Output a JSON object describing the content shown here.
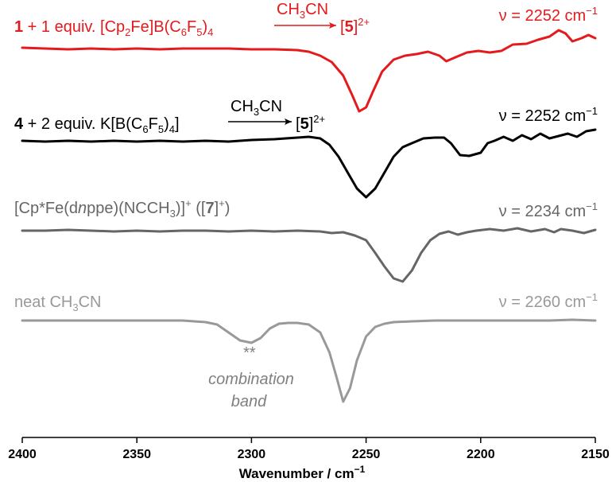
{
  "chart_data": {
    "type": "line",
    "xlabel": "Wavenumber / cm",
    "xlabel_sup": "−1",
    "x_reversed": true,
    "xlim": [
      2400,
      2150
    ],
    "xticks": [
      2400,
      2350,
      2300,
      2250,
      2200,
      2150
    ],
    "xtick_labels": [
      "2400",
      "2350",
      "2300",
      "2250",
      "2200",
      "2150"
    ],
    "y_axis_shown": false,
    "y_units": "offset absorbance (arbitrary, stacked traces)",
    "series": [
      {
        "id": "s1",
        "color": "#e41a1c",
        "label": {
          "bold_num": "1",
          "text1": " + 1 equiv. [Cp",
          "sub1": "2",
          "text2": "Fe]B(C",
          "sub2": "6",
          "text3": "F",
          "sub3": "5",
          "text4": ")",
          "sub4": "4",
          "arrow_above": "CH",
          "arrow_above_sub": "3",
          "arrow_above_end": "CN",
          "product_open": "[",
          "product_bold": "5",
          "product_close": "]",
          "product_sup": "2+"
        },
        "nu_label": "ν = 2252 cm",
        "nu_sup": "−1",
        "peak": 2252,
        "points": [
          [
            2400,
            0.0
          ],
          [
            2390,
            0.01
          ],
          [
            2380,
            0.02
          ],
          [
            2370,
            0.01
          ],
          [
            2360,
            0.02
          ],
          [
            2350,
            0.01
          ],
          [
            2340,
            0.02
          ],
          [
            2330,
            0.01
          ],
          [
            2320,
            0.01
          ],
          [
            2310,
            0.01
          ],
          [
            2300,
            0.02
          ],
          [
            2290,
            0.02
          ],
          [
            2280,
            0.03
          ],
          [
            2275,
            0.05
          ],
          [
            2270,
            0.1
          ],
          [
            2265,
            0.18
          ],
          [
            2260,
            0.35
          ],
          [
            2256,
            0.6
          ],
          [
            2253,
            0.8
          ],
          [
            2250,
            0.75
          ],
          [
            2247,
            0.55
          ],
          [
            2243,
            0.3
          ],
          [
            2238,
            0.15
          ],
          [
            2233,
            0.1
          ],
          [
            2228,
            0.08
          ],
          [
            2223,
            0.05
          ],
          [
            2218,
            0.1
          ],
          [
            2215,
            0.17
          ],
          [
            2211,
            0.12
          ],
          [
            2206,
            0.06
          ],
          [
            2201,
            0.04
          ],
          [
            2196,
            0.06
          ],
          [
            2191,
            0.04
          ],
          [
            2186,
            -0.04
          ],
          [
            2180,
            -0.05
          ],
          [
            2175,
            -0.1
          ],
          [
            2170,
            -0.14
          ],
          [
            2166,
            -0.22
          ],
          [
            2163,
            -0.18
          ],
          [
            2160,
            -0.08
          ],
          [
            2156,
            -0.12
          ],
          [
            2153,
            -0.16
          ],
          [
            2150,
            -0.12
          ]
        ]
      },
      {
        "id": "s2",
        "color": "#000000",
        "label": {
          "bold_num": "4",
          "text1": " + 2 equiv. K[B(C",
          "sub1": "6",
          "text2": "F",
          "sub2": "5",
          "text3": ")",
          "sub3": "4",
          "text4": "]",
          "arrow_above": "CH",
          "arrow_above_sub": "3",
          "arrow_above_end": "CN",
          "product_open": "[",
          "product_bold": "5",
          "product_close": "]",
          "product_sup": "2+"
        },
        "nu_label": "ν = 2252 cm",
        "nu_sup": "−1",
        "peak": 2250,
        "points": [
          [
            2400,
            0.0
          ],
          [
            2390,
            0.01
          ],
          [
            2380,
            0.0
          ],
          [
            2370,
            0.01
          ],
          [
            2360,
            0.0
          ],
          [
            2350,
            0.01
          ],
          [
            2340,
            0.0
          ],
          [
            2330,
            0.01
          ],
          [
            2320,
            0.0
          ],
          [
            2310,
            0.01
          ],
          [
            2300,
            -0.01
          ],
          [
            2290,
            -0.02
          ],
          [
            2280,
            -0.04
          ],
          [
            2275,
            -0.05
          ],
          [
            2270,
            -0.03
          ],
          [
            2266,
            0.05
          ],
          [
            2262,
            0.2
          ],
          [
            2258,
            0.4
          ],
          [
            2254,
            0.6
          ],
          [
            2250,
            0.71
          ],
          [
            2246,
            0.6
          ],
          [
            2242,
            0.4
          ],
          [
            2238,
            0.2
          ],
          [
            2234,
            0.08
          ],
          [
            2230,
            0.03
          ],
          [
            2225,
            -0.03
          ],
          [
            2220,
            -0.04
          ],
          [
            2216,
            -0.04
          ],
          [
            2213,
            0.03
          ],
          [
            2209,
            0.18
          ],
          [
            2205,
            0.19
          ],
          [
            2200,
            0.15
          ],
          [
            2197,
            0.03
          ],
          [
            2194,
            0.0
          ],
          [
            2190,
            -0.05
          ],
          [
            2186,
            0.0
          ],
          [
            2182,
            -0.07
          ],
          [
            2178,
            -0.02
          ],
          [
            2174,
            -0.09
          ],
          [
            2170,
            -0.03
          ],
          [
            2166,
            -0.06
          ],
          [
            2162,
            -0.09
          ],
          [
            2158,
            -0.05
          ],
          [
            2154,
            -0.12
          ],
          [
            2150,
            -0.14
          ]
        ]
      },
      {
        "id": "s3",
        "color": "#666666",
        "label": {
          "text1": "[Cp*Fe(d",
          "ital": "n",
          "text2": "ppe)(NCCH",
          "sub1": "3",
          "text3": ")]",
          "sup1": "+",
          "text4": " ([",
          "bold_num": "7",
          "text5": "]",
          "sup2": "+",
          "text6": ")"
        },
        "nu_label": "ν = 2234 cm",
        "nu_sup": "−1",
        "peak": 2234,
        "points": [
          [
            2400,
            0.0
          ],
          [
            2390,
            0.0
          ],
          [
            2380,
            -0.01
          ],
          [
            2370,
            0.0
          ],
          [
            2360,
            0.01
          ],
          [
            2350,
            0.0
          ],
          [
            2340,
            0.01
          ],
          [
            2330,
            0.0
          ],
          [
            2320,
            0.0
          ],
          [
            2310,
            0.01
          ],
          [
            2300,
            0.0
          ],
          [
            2290,
            0.01
          ],
          [
            2280,
            0.0
          ],
          [
            2270,
            0.01
          ],
          [
            2265,
            0.03
          ],
          [
            2260,
            0.02
          ],
          [
            2255,
            0.06
          ],
          [
            2250,
            0.12
          ],
          [
            2246,
            0.28
          ],
          [
            2242,
            0.45
          ],
          [
            2238,
            0.6
          ],
          [
            2234,
            0.64
          ],
          [
            2230,
            0.5
          ],
          [
            2226,
            0.28
          ],
          [
            2222,
            0.12
          ],
          [
            2218,
            0.04
          ],
          [
            2214,
            0.01
          ],
          [
            2210,
            0.05
          ],
          [
            2206,
            0.02
          ],
          [
            2202,
            0.0
          ],
          [
            2196,
            -0.02
          ],
          [
            2190,
            0.0
          ],
          [
            2184,
            -0.03
          ],
          [
            2178,
            0.01
          ],
          [
            2172,
            -0.02
          ],
          [
            2168,
            0.02
          ],
          [
            2165,
            -0.02
          ],
          [
            2160,
            0.0
          ],
          [
            2155,
            0.03
          ],
          [
            2150,
            -0.01
          ]
        ]
      },
      {
        "id": "s4",
        "color": "#999999",
        "label": {
          "text1": "neat CH",
          "sub1": "3",
          "text2": "CN"
        },
        "nu_label": "ν = 2260 cm",
        "nu_sup": "−1",
        "peak": 2260,
        "points": [
          [
            2400,
            0.0
          ],
          [
            2390,
            0.0
          ],
          [
            2380,
            0.0
          ],
          [
            2370,
            0.0
          ],
          [
            2360,
            0.0
          ],
          [
            2350,
            0.0
          ],
          [
            2340,
            0.0
          ],
          [
            2330,
            0.0
          ],
          [
            2320,
            0.02
          ],
          [
            2315,
            0.05
          ],
          [
            2310,
            0.15
          ],
          [
            2305,
            0.25
          ],
          [
            2300,
            0.28
          ],
          [
            2296,
            0.22
          ],
          [
            2292,
            0.1
          ],
          [
            2288,
            0.04
          ],
          [
            2284,
            0.03
          ],
          [
            2280,
            0.03
          ],
          [
            2275,
            0.05
          ],
          [
            2270,
            0.15
          ],
          [
            2266,
            0.4
          ],
          [
            2263,
            0.7
          ],
          [
            2260,
            1.02
          ],
          [
            2257,
            0.85
          ],
          [
            2254,
            0.5
          ],
          [
            2250,
            0.2
          ],
          [
            2246,
            0.08
          ],
          [
            2242,
            0.04
          ],
          [
            2238,
            0.02
          ],
          [
            2230,
            0.01
          ],
          [
            2220,
            0.0
          ],
          [
            2210,
            0.0
          ],
          [
            2200,
            0.0
          ],
          [
            2190,
            0.0
          ],
          [
            2180,
            0.0
          ],
          [
            2170,
            0.0
          ],
          [
            2160,
            -0.01
          ],
          [
            2150,
            0.0
          ]
        ]
      }
    ],
    "annotation": {
      "marker": "**",
      "line1": "combination",
      "line2": "band",
      "at_x": 2300
    }
  }
}
